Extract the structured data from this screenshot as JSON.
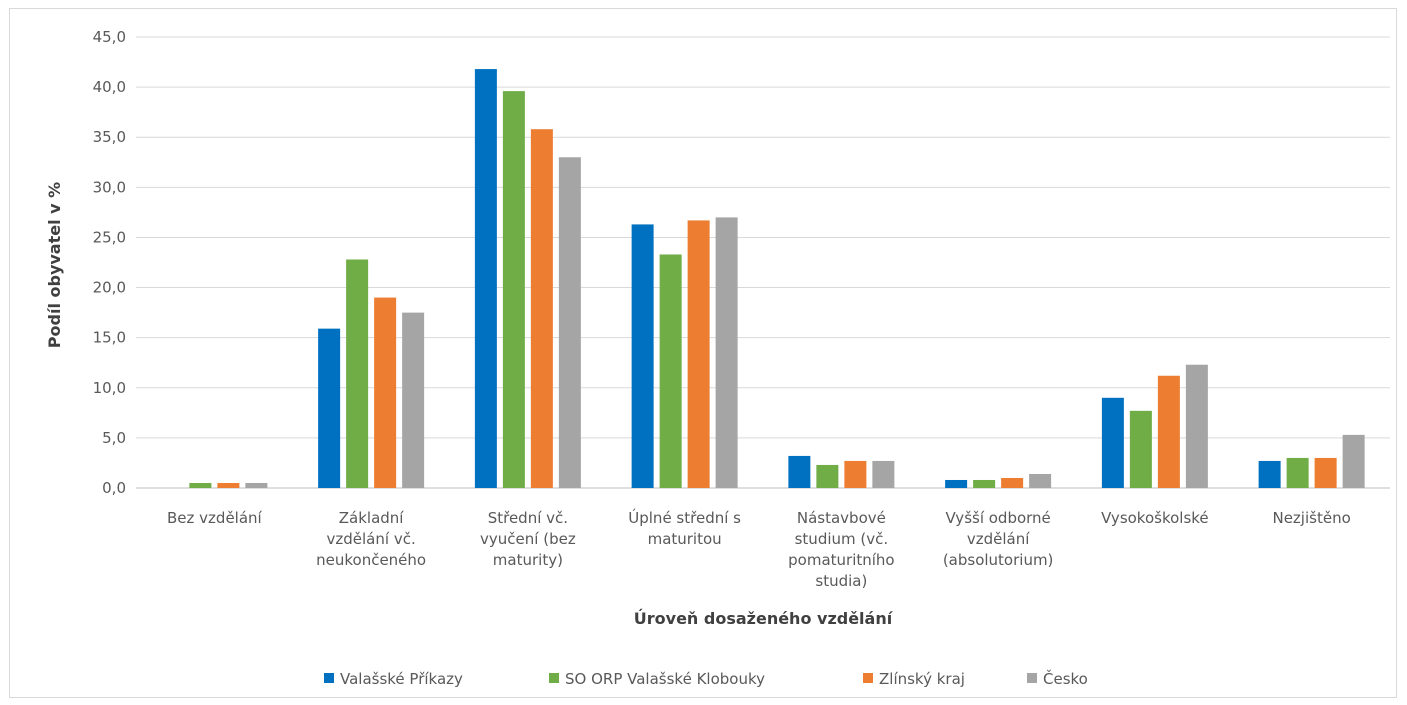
{
  "chart_data": {
    "type": "bar",
    "xlabel": "Úroveň dosaženého vzdělání",
    "ylabel": "Podíl obyvatel v %",
    "ylim": [
      0,
      45
    ],
    "ytick_step": 5,
    "ytick_labels": [
      "0,0",
      "5,0",
      "10,0",
      "15,0",
      "20,0",
      "25,0",
      "30,0",
      "35,0",
      "40,0",
      "45,0"
    ],
    "grid": true,
    "legend_position": "bottom",
    "categories": [
      [
        "Bez vzdělání"
      ],
      [
        "Základní",
        "vzdělání vč.",
        "neukončeného"
      ],
      [
        "Střední vč.",
        "vyučení (bez",
        "maturity)"
      ],
      [
        "Úplné střední s",
        "maturitou"
      ],
      [
        "Nástavbové",
        "studium (vč.",
        "pomaturitního",
        "studia)"
      ],
      [
        "Vyšší odborné",
        "vzdělání",
        "(absolutorium)"
      ],
      [
        "Vysokoškolské"
      ],
      [
        "Nezjištěno"
      ]
    ],
    "series": [
      {
        "name": "Valašské Příkazy",
        "color": "#0070c0",
        "values": [
          0.0,
          15.9,
          41.8,
          26.3,
          3.2,
          0.8,
          9.0,
          2.7
        ]
      },
      {
        "name": "SO ORP Valašské Klobouky",
        "color": "#70ad47",
        "values": [
          0.5,
          22.8,
          39.6,
          23.3,
          2.3,
          0.8,
          7.7,
          3.0
        ]
      },
      {
        "name": "Zlínský kraj",
        "color": "#ed7d31",
        "values": [
          0.5,
          19.0,
          35.8,
          26.7,
          2.7,
          1.0,
          11.2,
          3.0
        ]
      },
      {
        "name": "Česko",
        "color": "#a5a5a5",
        "values": [
          0.5,
          17.5,
          33.0,
          27.0,
          2.7,
          1.4,
          12.3,
          5.3
        ]
      }
    ]
  }
}
